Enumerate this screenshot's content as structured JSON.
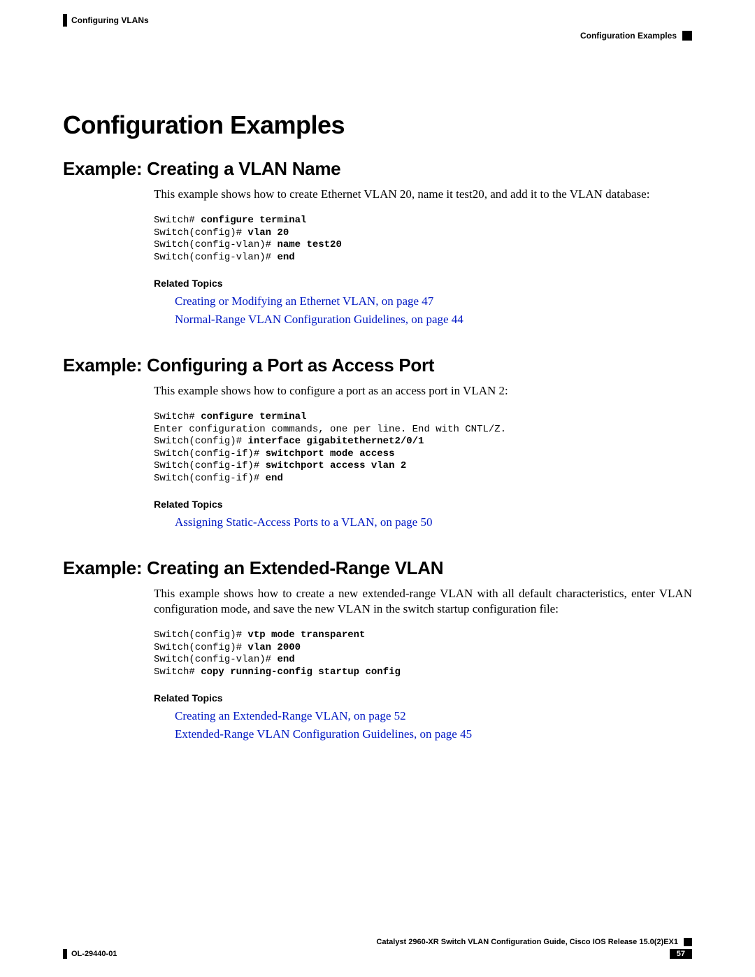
{
  "colors": {
    "link": "#0018c4",
    "text": "#000000",
    "background": "#ffffff"
  },
  "typography": {
    "body_font": "Times New Roman",
    "heading_font": "Arial",
    "code_font": "Courier New",
    "main_title_size_pt": 27,
    "section_title_size_pt": 20,
    "body_size_pt": 13,
    "code_size_pt": 10,
    "related_heading_size_pt": 10
  },
  "header": {
    "left": "Configuring VLANs",
    "right": "Configuration Examples"
  },
  "main_title": "Configuration Examples",
  "sections": [
    {
      "title": "Example: Creating a VLAN Name",
      "body": "This example shows how to create Ethernet VLAN 20, name it test20, and add it to the VLAN database:",
      "code": {
        "lines": [
          {
            "prompt": "Switch# ",
            "bold": "configure terminal"
          },
          {
            "prompt": "Switch(config)# ",
            "bold": "vlan 20"
          },
          {
            "prompt": "Switch(config-vlan)# ",
            "bold": "name test20"
          },
          {
            "prompt": "Switch(config-vlan)# ",
            "bold": "end"
          }
        ]
      },
      "related_heading": "Related Topics",
      "links": [
        "Creating or Modifying an Ethernet VLAN,  on page 47",
        "Normal-Range VLAN Configuration Guidelines,  on page 44"
      ]
    },
    {
      "title": "Example: Configuring a Port as Access Port",
      "body": "This example shows how to configure a port as an access port in VLAN 2:",
      "code": {
        "lines": [
          {
            "prompt": "Switch# ",
            "bold": "configure terminal"
          },
          {
            "prompt": "Enter configuration commands, one per line. End with CNTL/Z.",
            "bold": ""
          },
          {
            "prompt": "Switch(config)# ",
            "bold": "interface gigabitethernet2/0/1"
          },
          {
            "prompt": "Switch(config-if)# ",
            "bold": "switchport mode access"
          },
          {
            "prompt": "Switch(config-if)# ",
            "bold": "switchport access vlan 2"
          },
          {
            "prompt": "Switch(config-if)# ",
            "bold": "end"
          }
        ]
      },
      "related_heading": "Related Topics",
      "links": [
        "Assigning Static-Access Ports to a VLAN,  on page 50"
      ]
    },
    {
      "title": "Example: Creating an Extended-Range VLAN",
      "body": "This example shows how to create a new extended-range VLAN with all default characteristics, enter VLAN configuration mode, and save the new VLAN in the switch startup configuration file:",
      "code": {
        "lines": [
          {
            "prompt": "Switch(config)# ",
            "bold": "vtp mode transparent"
          },
          {
            "prompt": "Switch(config)# ",
            "bold": "vlan 2000"
          },
          {
            "prompt": "Switch(config-vlan)# ",
            "bold": "end"
          },
          {
            "prompt": "Switch# ",
            "bold": "copy running-config startup config"
          }
        ]
      },
      "related_heading": "Related Topics",
      "links": [
        "Creating an Extended-Range VLAN,  on page 52",
        "Extended-Range VLAN Configuration Guidelines,  on page 45"
      ]
    }
  ],
  "footer": {
    "guide": "Catalyst 2960-XR Switch VLAN Configuration Guide, Cisco IOS Release 15.0(2)EX1",
    "doc_id": "OL-29440-01",
    "page_number": "57"
  }
}
